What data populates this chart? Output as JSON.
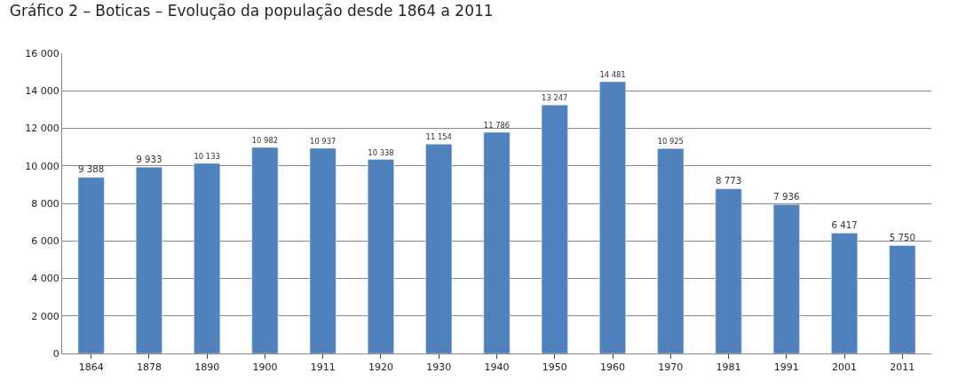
{
  "chart_data": {
    "type": "bar",
    "title": "Gráfico 2 – Boticas – Evolução da população desde 1864 a 2011",
    "categories": [
      "1864",
      "1878",
      "1890",
      "1900",
      "1911",
      "1920",
      "1930",
      "1940",
      "1950",
      "1960",
      "1970",
      "1981",
      "1991",
      "2001",
      "2011"
    ],
    "values": [
      9388,
      9933,
      10133,
      10982,
      10937,
      10338,
      11154,
      11786,
      13247,
      14481,
      10925,
      8773,
      7936,
      6417,
      5750
    ],
    "value_labels": [
      "9 388",
      "9 933",
      "10 133",
      "10 982",
      "10 937",
      "10 338",
      "11 154",
      "11 786",
      "13 247",
      "14 481",
      "10 925",
      "8 773",
      "7 936",
      "6 417",
      "5 750"
    ],
    "color": "#4f81bd",
    "ylim": [
      0,
      16000
    ],
    "yticks": [
      0,
      {
        "value": 2000,
        "label": "2 000"
      },
      {
        "value": 4000,
        "label": "4 000"
      },
      {
        "value": 6000,
        "label": "6 000"
      },
      {
        "value": 8000,
        "label": "8 000"
      },
      {
        "value": 10000,
        "label": "10 000"
      },
      {
        "value": 12000,
        "label": "12 000"
      },
      {
        "value": 14000,
        "label": "14 000"
      },
      {
        "value": 16000,
        "label": "16 000"
      }
    ],
    "grid": "y",
    "legend": false
  }
}
